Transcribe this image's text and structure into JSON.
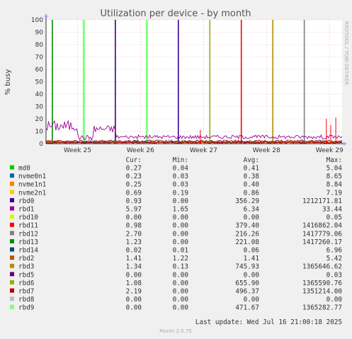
{
  "chart_data": {
    "type": "line",
    "title": "Utilization per device - by month",
    "ylabel": "% busy",
    "ylim": [
      0,
      100
    ],
    "y_ticks": [
      "0",
      "10",
      "20",
      "30",
      "40",
      "50",
      "60",
      "70",
      "80",
      "90",
      "100"
    ],
    "x_ticks": [
      "Week 25",
      "Week 26",
      "Week 27",
      "Week 28",
      "Week 29"
    ],
    "side_label": "RRDTOOL / TOBI OETIKER",
    "legend_headers": [
      "Cur:",
      "Min:",
      "Avg:",
      "Max:"
    ],
    "series": [
      {
        "name": "md0",
        "color": "#00cc00",
        "cur": "0.27",
        "min": "0.04",
        "avg": "0.41",
        "max": "5.04"
      },
      {
        "name": "nvme0n1",
        "color": "#0066b3",
        "cur": "0.23",
        "min": "0.03",
        "avg": "0.38",
        "max": "8.65"
      },
      {
        "name": "nvme1n1",
        "color": "#ff8000",
        "cur": "0.25",
        "min": "0.03",
        "avg": "0.40",
        "max": "8.84"
      },
      {
        "name": "nvme2n1",
        "color": "#ffcc00",
        "cur": "0.69",
        "min": "0.19",
        "avg": "0.86",
        "max": "7.19"
      },
      {
        "name": "rbd0",
        "color": "#330099",
        "cur": "0.93",
        "min": "0.00",
        "avg": "356.29",
        "max": "1212171.81"
      },
      {
        "name": "rbd1",
        "color": "#990099",
        "cur": "5.97",
        "min": "1.65",
        "avg": "6.34",
        "max": "33.44"
      },
      {
        "name": "rbd10",
        "color": "#ccff00",
        "cur": "0.00",
        "min": "0.00",
        "avg": "0.00",
        "max": "0.05"
      },
      {
        "name": "rbd11",
        "color": "#ff0000",
        "cur": "0.98",
        "min": "0.00",
        "avg": "379.40",
        "max": "1416862.04"
      },
      {
        "name": "rbd12",
        "color": "#808080",
        "cur": "2.70",
        "min": "0.00",
        "avg": "216.26",
        "max": "1417779.06"
      },
      {
        "name": "rbd13",
        "color": "#008f00",
        "cur": "1.23",
        "min": "0.00",
        "avg": "221.08",
        "max": "1417260.17"
      },
      {
        "name": "rbd14",
        "color": "#00487d",
        "cur": "0.02",
        "min": "0.01",
        "avg": "0.06",
        "max": "6.96"
      },
      {
        "name": "rbd2",
        "color": "#b35a00",
        "cur": "1.41",
        "min": "1.22",
        "avg": "1.41",
        "max": "5.42"
      },
      {
        "name": "rbd3",
        "color": "#b38f00",
        "cur": "1.34",
        "min": "0.13",
        "avg": "745.93",
        "max": "1365646.62"
      },
      {
        "name": "rbd5",
        "color": "#6b006b",
        "cur": "0.00",
        "min": "0.00",
        "avg": "0.00",
        "max": "0.03"
      },
      {
        "name": "rbd6",
        "color": "#8fb300",
        "cur": "1.08",
        "min": "0.00",
        "avg": "655.90",
        "max": "1365590.76"
      },
      {
        "name": "rbd7",
        "color": "#b30000",
        "cur": "2.19",
        "min": "0.00",
        "avg": "496.37",
        "max": "1351214.00"
      },
      {
        "name": "rbd8",
        "color": "#bebebe",
        "cur": "0.00",
        "min": "0.00",
        "avg": "0.00",
        "max": "0.00"
      },
      {
        "name": "rbd9",
        "color": "#80ff80",
        "cur": "0.00",
        "min": "0.00",
        "avg": "471.67",
        "max": "1365282.77"
      }
    ],
    "spikes": [
      {
        "series": "rbd13",
        "at": "Week 24.6"
      },
      {
        "series": "rbd9",
        "at": "Week 25.1"
      },
      {
        "series": "rbd0",
        "at": "Week 25.6"
      },
      {
        "series": "rbd9",
        "at": "Week 26.1"
      },
      {
        "series": "rbd0",
        "at": "Week 26.6"
      },
      {
        "series": "rbd6",
        "at": "Week 27.1"
      },
      {
        "series": "rbd11",
        "at": "Week 27.6"
      },
      {
        "series": "rbd3",
        "at": "Week 28.1"
      },
      {
        "series": "rbd12",
        "at": "Week 28.6"
      }
    ],
    "last_update": "Last update: Wed Jul 16 21:00:18 2025",
    "footer": "Munin 2.0.75"
  }
}
